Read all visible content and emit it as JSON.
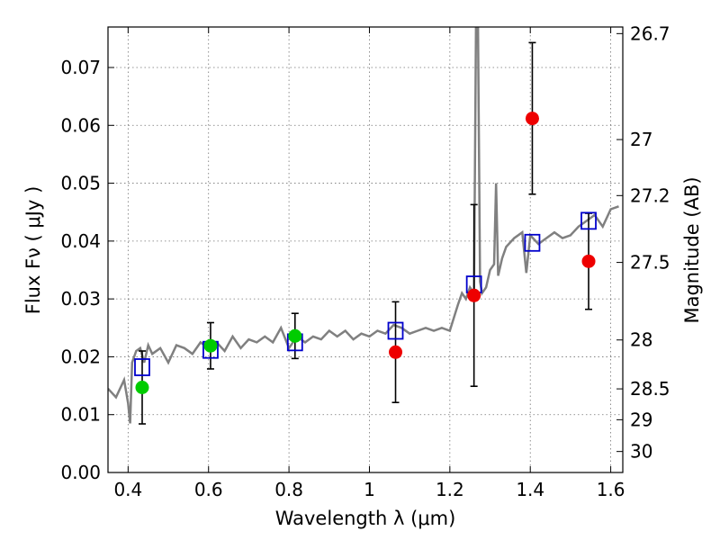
{
  "chart_data": {
    "type": "scatter",
    "title": "",
    "xlabel": "Wavelength  λ (μm)",
    "ylabel": "Flux  Fν  ( μJy )",
    "y2label": "Magnitude (AB)",
    "xlim": [
      0.35,
      1.63
    ],
    "ylim": [
      0.0,
      0.077
    ],
    "grid": true,
    "legend": "none",
    "x_ticks": [
      0.4,
      0.6,
      0.8,
      1.0,
      1.2,
      1.4,
      1.6
    ],
    "x_tick_labels": [
      "0.4",
      "0.6",
      "0.8",
      "1",
      "1.2",
      "1.4",
      "1.6"
    ],
    "y_ticks": [
      0.0,
      0.01,
      0.02,
      0.03,
      0.04,
      0.05,
      0.06,
      0.07
    ],
    "y_tick_labels": [
      "0.00",
      "0.01",
      "0.02",
      "0.03",
      "0.04",
      "0.05",
      "0.06",
      "0.07"
    ],
    "y2_ticks": [
      "26.7",
      "27",
      "27.2",
      "27.5",
      "28",
      "28.5",
      "29",
      "30"
    ],
    "colors": {
      "spectrum": "#808080",
      "model_box": "#0000cc",
      "green_points": "#00cc00",
      "red_points": "#ee0000",
      "errorbar": "#000000"
    },
    "spectrum": {
      "x": [
        0.35,
        0.37,
        0.39,
        0.4,
        0.405,
        0.41,
        0.42,
        0.43,
        0.44,
        0.45,
        0.46,
        0.48,
        0.5,
        0.52,
        0.54,
        0.56,
        0.58,
        0.6,
        0.62,
        0.64,
        0.66,
        0.68,
        0.7,
        0.72,
        0.74,
        0.76,
        0.78,
        0.8,
        0.82,
        0.84,
        0.86,
        0.88,
        0.9,
        0.92,
        0.94,
        0.96,
        0.98,
        1.0,
        1.02,
        1.04,
        1.06,
        1.08,
        1.1,
        1.12,
        1.14,
        1.16,
        1.18,
        1.2,
        1.22,
        1.23,
        1.24,
        1.25,
        1.26,
        1.265,
        1.27,
        1.275,
        1.28,
        1.29,
        1.3,
        1.31,
        1.315,
        1.32,
        1.33,
        1.34,
        1.36,
        1.38,
        1.39,
        1.4,
        1.42,
        1.44,
        1.46,
        1.48,
        1.5,
        1.52,
        1.54,
        1.56,
        1.58,
        1.6,
        1.62
      ],
      "y": [
        0.0145,
        0.013,
        0.016,
        0.012,
        0.0085,
        0.019,
        0.021,
        0.0215,
        0.019,
        0.022,
        0.0205,
        0.0215,
        0.019,
        0.022,
        0.0215,
        0.0205,
        0.0225,
        0.0215,
        0.0225,
        0.021,
        0.0235,
        0.0215,
        0.023,
        0.0225,
        0.0235,
        0.0225,
        0.025,
        0.0215,
        0.0235,
        0.0225,
        0.0235,
        0.023,
        0.0245,
        0.0235,
        0.0245,
        0.023,
        0.024,
        0.0235,
        0.0245,
        0.024,
        0.0255,
        0.025,
        0.024,
        0.0245,
        0.025,
        0.0245,
        0.025,
        0.0245,
        0.029,
        0.031,
        0.03,
        0.032,
        0.031,
        0.0775,
        0.0775,
        0.033,
        0.031,
        0.032,
        0.035,
        0.036,
        0.05,
        0.034,
        0.037,
        0.039,
        0.0405,
        0.0415,
        0.0345,
        0.041,
        0.0395,
        0.0405,
        0.0415,
        0.0405,
        0.041,
        0.0425,
        0.0435,
        0.0445,
        0.0425,
        0.0455,
        0.046
      ]
    },
    "model_boxes": {
      "x": [
        0.435,
        0.605,
        0.815,
        1.065,
        1.26,
        1.405,
        1.545
      ],
      "y": [
        0.0182,
        0.0212,
        0.0225,
        0.0245,
        0.0325,
        0.0397,
        0.0435
      ]
    },
    "green_points": {
      "x": [
        0.435,
        0.605,
        0.815
      ],
      "y": [
        0.0147,
        0.0219,
        0.0236
      ],
      "err": [
        0.0063,
        0.004,
        0.0039
      ]
    },
    "red_points": {
      "x": [
        1.065,
        1.26,
        1.405,
        1.545
      ],
      "y": [
        0.0208,
        0.0306,
        0.0612,
        0.0365
      ],
      "err": [
        0.0087,
        0.0157,
        0.0131,
        0.0083
      ]
    }
  }
}
